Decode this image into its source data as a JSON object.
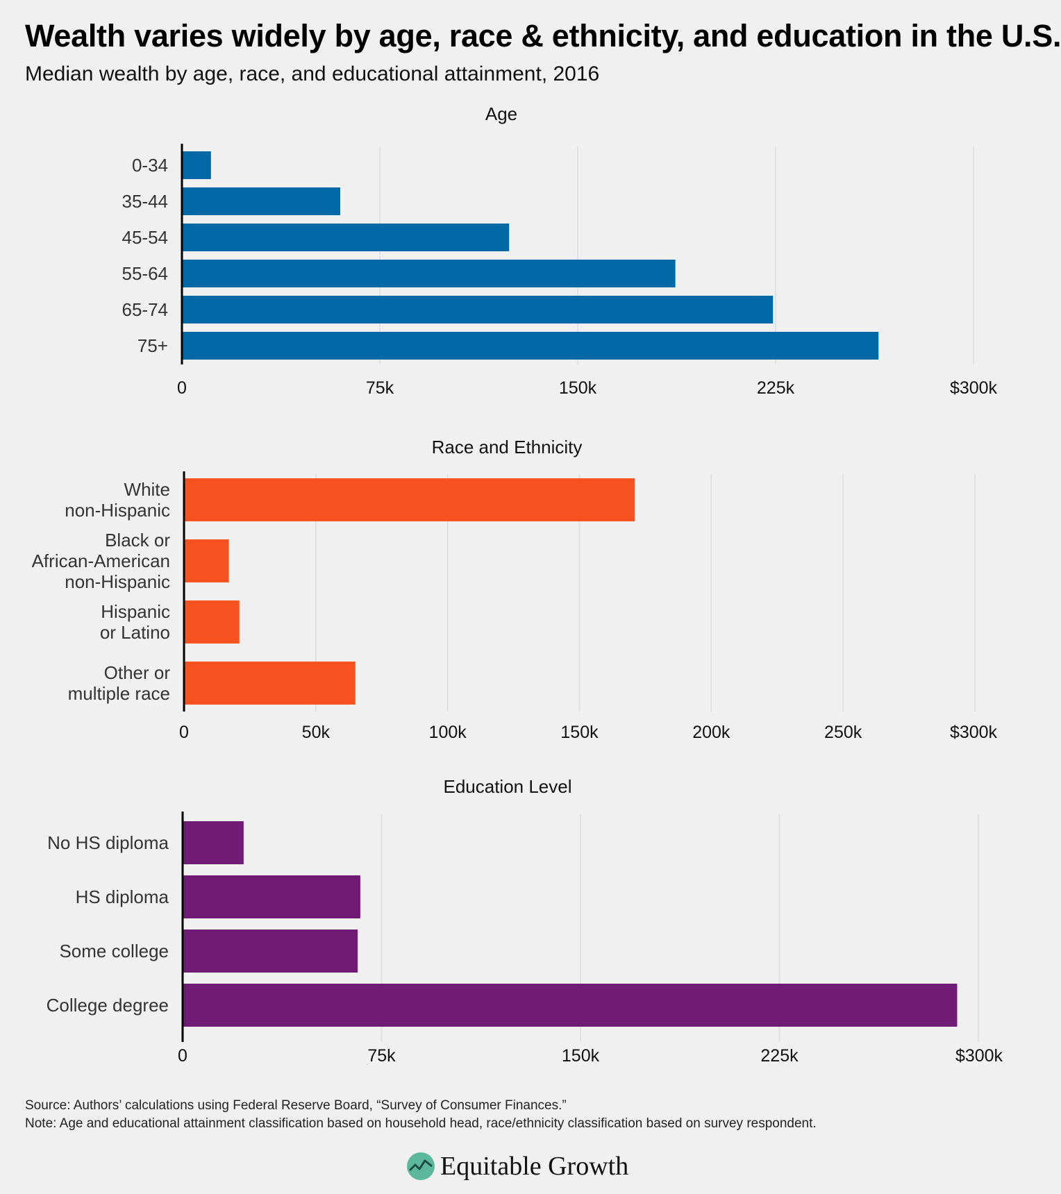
{
  "header": {
    "title": "Wealth varies widely by age, race & ethnicity, and education in the U.S.",
    "subtitle": "Median wealth by age, race, and educational attainment, 2016"
  },
  "chart_data": [
    {
      "type": "bar",
      "orientation": "horizontal",
      "title": "Age",
      "categories": [
        [
          "0-34"
        ],
        [
          "35-44"
        ],
        [
          "45-54"
        ],
        [
          "55-64"
        ],
        [
          "65-74"
        ],
        [
          "75+"
        ]
      ],
      "values": [
        11000,
        60000,
        124000,
        187000,
        224000,
        264000
      ],
      "xlim": [
        0,
        300000
      ],
      "ticks": [
        0,
        75000,
        150000,
        225000,
        300000
      ],
      "tick_labels": [
        "0",
        "75k",
        "150k",
        "225k",
        "$300k"
      ],
      "color": "#0069a6",
      "grid": true
    },
    {
      "type": "bar",
      "orientation": "horizontal",
      "title": "Race and Ethnicity",
      "categories": [
        [
          "White",
          "non-Hispanic"
        ],
        [
          "Black or",
          "African-American",
          "non-Hispanic"
        ],
        [
          "Hispanic",
          "or Latino"
        ],
        [
          "Other or",
          "multiple race"
        ]
      ],
      "values": [
        171000,
        17000,
        21000,
        65000
      ],
      "xlim": [
        0,
        300000
      ],
      "ticks": [
        0,
        50000,
        100000,
        150000,
        200000,
        250000,
        300000
      ],
      "tick_labels": [
        "0",
        "50k",
        "100k",
        "150k",
        "200k",
        "250k",
        "$300k"
      ],
      "color": "#f75220",
      "grid": true
    },
    {
      "type": "bar",
      "orientation": "horizontal",
      "title": "Education Level",
      "categories": [
        [
          "No HS diploma"
        ],
        [
          "HS diploma"
        ],
        [
          "Some college"
        ],
        [
          "College degree"
        ]
      ],
      "values": [
        23000,
        67000,
        66000,
        292000
      ],
      "xlim": [
        0,
        300000
      ],
      "ticks": [
        0,
        75000,
        150000,
        225000,
        300000
      ],
      "tick_labels": [
        "0",
        "75k",
        "150k",
        "225k",
        "$300k"
      ],
      "color": "#711c74",
      "grid": true
    }
  ],
  "footer": {
    "source": "Source: Authors’ calculations using Federal Reserve Board, “Survey of Consumer Finances.”",
    "note": "Note: Age and educational attainment classification based on household head, race/ethnicity classification based on survey respondent."
  },
  "brand": {
    "name": "Equitable Growth",
    "logo_icon": "growth-chart-leaf-icon",
    "logo_color": "#5bb89a"
  }
}
